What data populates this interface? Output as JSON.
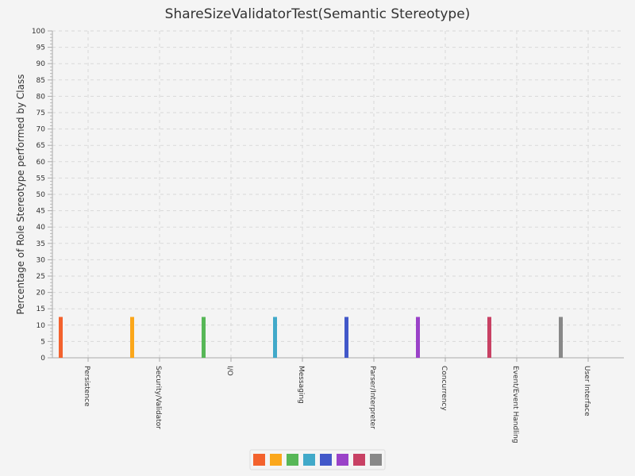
{
  "chart_data": {
    "type": "bar",
    "title": "ShareSizeValidatorTest(Semantic Stereotype)",
    "xlabel": "",
    "ylabel": "Percentage of Role Stereotype performed by Class",
    "ylim": [
      0,
      100
    ],
    "yticks": [
      0,
      5,
      10,
      15,
      20,
      25,
      30,
      35,
      40,
      45,
      50,
      55,
      60,
      65,
      70,
      75,
      80,
      85,
      90,
      95,
      100
    ],
    "grid": true,
    "legend": "bottom",
    "categories": [
      "Persistence",
      "Security/Validator",
      "I/O",
      "Messaging",
      "Parser/Interpreter",
      "Concurrency",
      "Event/Event Handling",
      "User Interface"
    ],
    "values": [
      12.5,
      12.5,
      12.5,
      12.5,
      12.5,
      12.5,
      12.5,
      12.5
    ],
    "colors": [
      "#f3622d",
      "#fba71b",
      "#57b757",
      "#41a9c9",
      "#4258c9",
      "#9a42c8",
      "#c84164",
      "#888888"
    ]
  }
}
